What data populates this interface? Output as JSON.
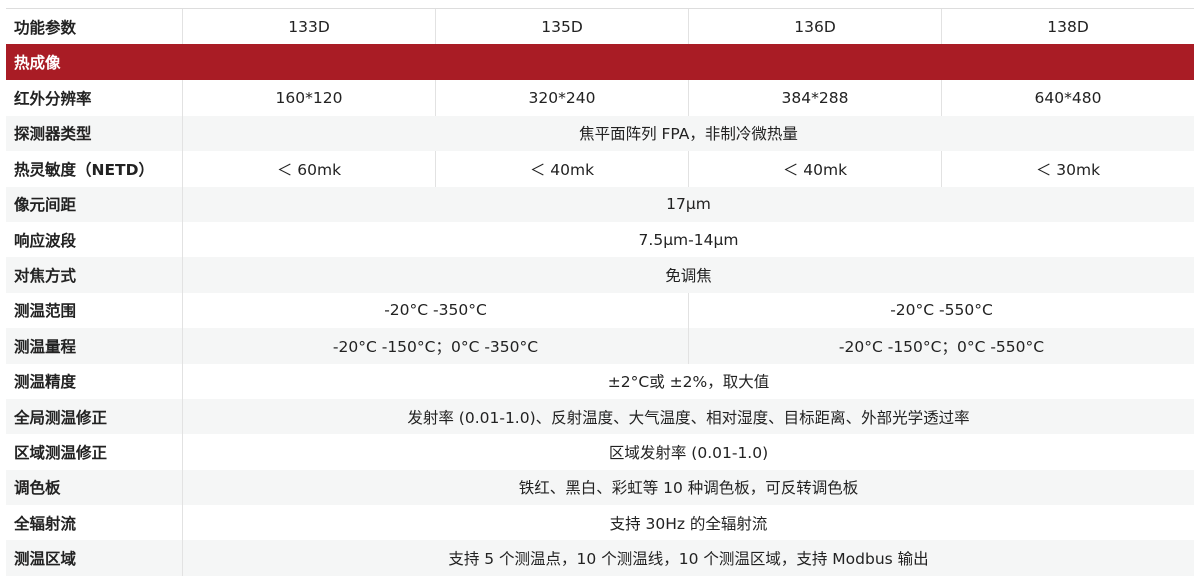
{
  "header": {
    "label": "功能参数",
    "models": [
      "133D",
      "135D",
      "136D",
      "138D"
    ]
  },
  "section": {
    "title": "热成像"
  },
  "colors": {
    "section_bg": "#a91c25",
    "stripe": "#f5f6f6"
  },
  "rows": [
    {
      "label": "红外分辨率",
      "values": [
        "160*120",
        "320*240",
        "384*288",
        "640*480"
      ]
    },
    {
      "label": "探测器类型",
      "values": [
        "焦平面阵列 FPA，非制冷微热量"
      ]
    },
    {
      "label": "热灵敏度（NETD）",
      "values": [
        "＜ 60mk",
        "＜ 40mk",
        "＜ 40mk",
        "＜ 30mk"
      ]
    },
    {
      "label": "像元间距",
      "values": [
        "17μm"
      ]
    },
    {
      "label": "响应波段",
      "values": [
        "7.5μm-14μm"
      ]
    },
    {
      "label": "对焦方式",
      "values": [
        "免调焦"
      ]
    },
    {
      "label": "测温范围",
      "values": [
        "-20°C -350°C",
        "-20°C -550°C"
      ]
    },
    {
      "label": "测温量程",
      "values": [
        "-20°C -150°C；0°C -350°C",
        "-20°C -150°C；0°C -550°C"
      ]
    },
    {
      "label": "测温精度",
      "values": [
        "±2°C或 ±2%，取大值"
      ]
    },
    {
      "label": "全局测温修正",
      "values": [
        "发射率 (0.01-1.0)、反射温度、大气温度、相对湿度、目标距离、外部光学透过率"
      ]
    },
    {
      "label": "区域测温修正",
      "values": [
        "区域发射率 (0.01-1.0)"
      ]
    },
    {
      "label": "调色板",
      "values": [
        "铁红、黑白、彩虹等 10 种调色板，可反转调色板"
      ]
    },
    {
      "label": "全辐射流",
      "values": [
        "支持 30Hz 的全辐射流"
      ]
    },
    {
      "label": "测温区域",
      "values": [
        "支持 5 个测温点，10 个测温线，10 个测温区域，支持 Modbus 输出"
      ]
    }
  ]
}
